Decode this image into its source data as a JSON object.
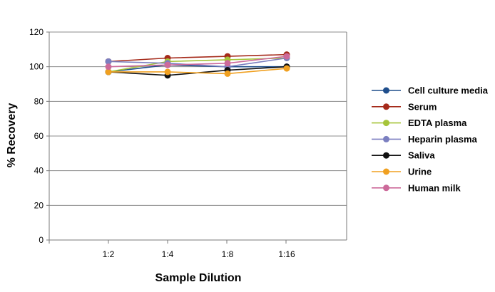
{
  "chart_data": {
    "type": "line",
    "title": "",
    "xlabel": "Sample Dilution",
    "ylabel": "% Recovery",
    "categories": [
      "1:2",
      "1:4",
      "1:8",
      "1:16"
    ],
    "ylim": [
      0,
      120
    ],
    "yticks": [
      0,
      20,
      40,
      60,
      80,
      100,
      120
    ],
    "grid": "horizontal",
    "legend_position": "right",
    "series": [
      {
        "name": "Cell culture media",
        "color": "#1f4e8c",
        "values": [
          97,
          101,
          100,
          100
        ]
      },
      {
        "name": "Serum",
        "color": "#a52a1a",
        "values": [
          103,
          105,
          106,
          107
        ]
      },
      {
        "name": "EDTA plasma",
        "color": "#a6c43a",
        "values": [
          97,
          103,
          104,
          105
        ]
      },
      {
        "name": "Heparin plasma",
        "color": "#7b7fc0",
        "values": [
          103,
          102,
          100,
          105
        ]
      },
      {
        "name": "Saliva",
        "color": "#111111",
        "values": [
          97,
          95,
          98,
          100
        ]
      },
      {
        "name": "Urine",
        "color": "#f0a020",
        "values": [
          97,
          97,
          96,
          99
        ]
      },
      {
        "name": "Human milk",
        "color": "#cc6a9a",
        "values": [
          100,
          101,
          102,
          106
        ]
      }
    ]
  }
}
